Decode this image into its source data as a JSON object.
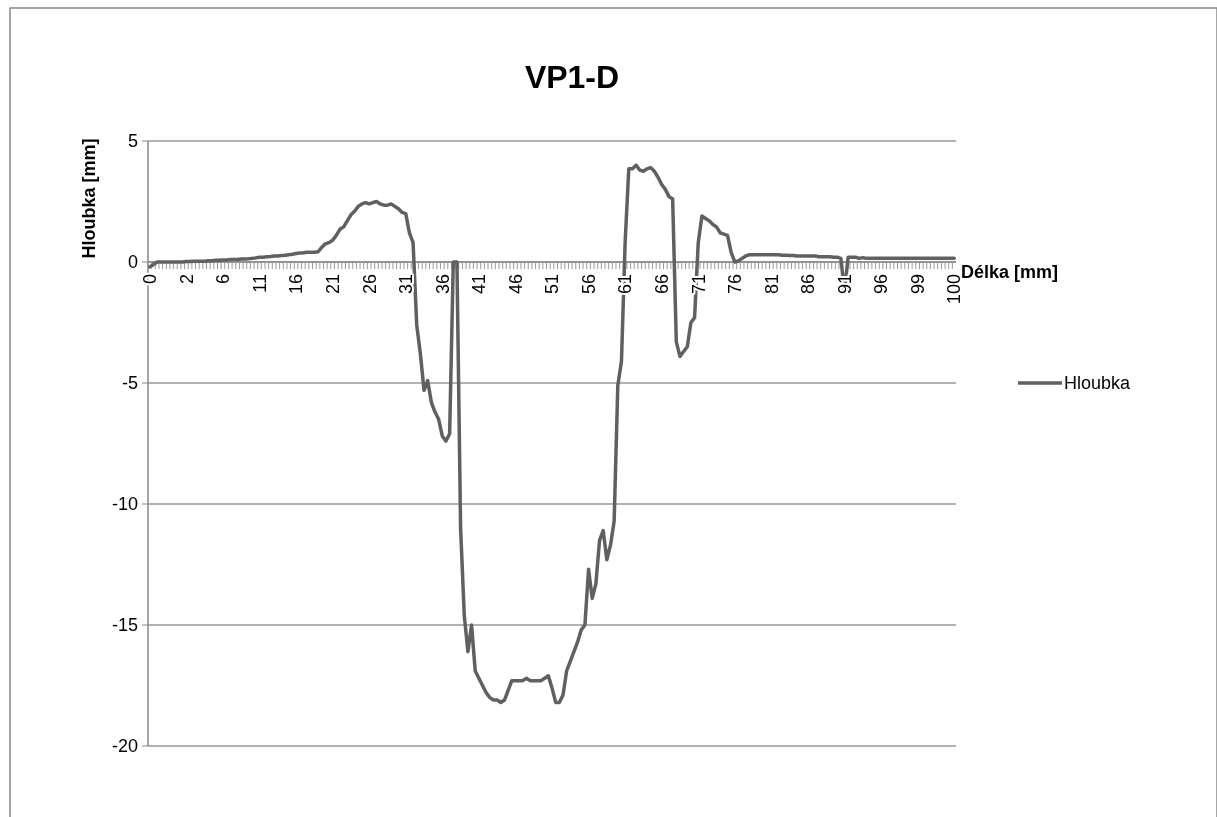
{
  "chart_data": {
    "type": "line",
    "title": "VP1-D",
    "xlabel": "Délka [mm]",
    "ylabel": "Hloubka [mm]",
    "categories": [
      "0",
      null,
      null,
      null,
      null,
      null,
      null,
      null,
      null,
      null,
      "2",
      null,
      null,
      null,
      null,
      null,
      null,
      null,
      null,
      null,
      "6",
      null,
      null,
      null,
      null,
      null,
      null,
      null,
      null,
      null,
      "11",
      null,
      null,
      null,
      null,
      null,
      null,
      null,
      null,
      null,
      "16",
      null,
      null,
      null,
      null,
      null,
      null,
      null,
      null,
      null,
      "21",
      null,
      null,
      null,
      null,
      null,
      null,
      null,
      null,
      null,
      "26",
      null,
      null,
      null,
      null,
      null,
      null,
      null,
      null,
      null,
      "31",
      null,
      null,
      null,
      null,
      null,
      null,
      null,
      null,
      null,
      "36",
      null,
      null,
      null,
      null,
      null,
      null,
      null,
      null,
      null,
      "41",
      null,
      null,
      null,
      null,
      null,
      null,
      null,
      null,
      null,
      "46",
      null,
      null,
      null,
      null,
      null,
      null,
      null,
      null,
      null,
      "51",
      null,
      null,
      null,
      null,
      null,
      null,
      null,
      null,
      null,
      "56",
      null,
      null,
      null,
      null,
      null,
      null,
      null,
      null,
      null,
      "61",
      null,
      null,
      null,
      null,
      null,
      null,
      null,
      null,
      null,
      "66",
      null,
      null,
      null,
      null,
      null,
      null,
      null,
      null,
      null,
      "71",
      null,
      null,
      null,
      null,
      null,
      null,
      null,
      null,
      null,
      "76",
      null,
      null,
      null,
      null,
      null,
      null,
      null,
      null,
      null,
      "81",
      null,
      null,
      null,
      null,
      null,
      null,
      null,
      null,
      null,
      "86",
      null,
      null,
      null,
      null,
      null,
      null,
      null,
      null,
      null,
      "91",
      null,
      null,
      null,
      null,
      null,
      null,
      null,
      null,
      null,
      "96",
      null,
      null,
      null,
      null,
      null,
      null,
      null,
      null,
      null,
      "99",
      null,
      null,
      null,
      null,
      null,
      null,
      null,
      null,
      null,
      "100"
    ],
    "series": [
      {
        "name": "Hloubka",
        "color": "#606060",
        "values": [
          -0.2,
          -0.1,
          0,
          0,
          0,
          0,
          0,
          0,
          0,
          0,
          0.02,
          0.02,
          0.03,
          0.03,
          0.03,
          0.03,
          0.05,
          0.05,
          0.07,
          0.07,
          0.08,
          0.08,
          0.1,
          0.1,
          0.1,
          0.12,
          0.12,
          0.13,
          0.15,
          0.17,
          0.2,
          0.2,
          0.22,
          0.23,
          0.25,
          0.25,
          0.27,
          0.28,
          0.3,
          0.32,
          0.35,
          0.37,
          0.38,
          0.4,
          0.4,
          0.4,
          0.42,
          0.6,
          0.75,
          0.8,
          0.9,
          1.1,
          1.35,
          1.45,
          1.7,
          1.95,
          2.1,
          2.3,
          2.4,
          2.45,
          2.4,
          2.45,
          2.5,
          2.4,
          2.35,
          2.35,
          2.4,
          2.3,
          2.2,
          2.05,
          2.0,
          1.2,
          0.8,
          -2.6,
          -3.8,
          -5.3,
          -4.9,
          -5.8,
          -6.2,
          -6.5,
          -7.2,
          -7.4,
          -7.1,
          0,
          0,
          -11,
          -14.6,
          -16.1,
          -15,
          -16.9,
          -17.2,
          -17.5,
          -17.8,
          -18,
          -18.1,
          -18.1,
          -18.2,
          -18.1,
          -17.7,
          -17.3,
          -17.3,
          -17.3,
          -17.3,
          -17.2,
          -17.3,
          -17.3,
          -17.3,
          -17.3,
          -17.2,
          -17.1,
          -17.6,
          -18.2,
          -18.2,
          -17.9,
          -16.9,
          -16.5,
          -16.1,
          -15.7,
          -15.2,
          -15,
          -12.7,
          -13.9,
          -13.3,
          -11.5,
          -11.1,
          -12.3,
          -11.7,
          -10.7,
          -5.1,
          -4.1,
          0.8,
          3.85,
          3.85,
          4.0,
          3.8,
          3.75,
          3.85,
          3.9,
          3.75,
          3.5,
          3.2,
          3.0,
          2.7,
          2.6,
          -3.3,
          -3.9,
          -3.7,
          -3.5,
          -2.5,
          -2.3,
          0.8,
          1.9,
          1.8,
          1.7,
          1.55,
          1.45,
          1.2,
          1.15,
          1.1,
          0.4,
          0,
          0.05,
          0.15,
          0.25,
          0.3,
          0.3,
          0.3,
          0.3,
          0.3,
          0.3,
          0.3,
          0.3,
          0.3,
          0.28,
          0.28,
          0.27,
          0.27,
          0.25,
          0.25,
          0.25,
          0.25,
          0.25,
          0.25,
          0.22,
          0.22,
          0.22,
          0.22,
          0.2,
          0.2,
          0.15,
          -1.2,
          0.2,
          0.2,
          0.2,
          0.15,
          0.18,
          0.15,
          0.15,
          0.15,
          0.15,
          0.15,
          0.15,
          0.15,
          0.15,
          0.15,
          0.15,
          0.15,
          0.15,
          0.15,
          0.15,
          0.15,
          0.15,
          0.15,
          0.15,
          0.15,
          0.15,
          0.15,
          0.15,
          0.15,
          0.15,
          0.15
        ]
      }
    ],
    "ylim": [
      -20,
      5
    ],
    "yticks": [
      -20,
      -15,
      -10,
      -5,
      0,
      5
    ],
    "grid": "y",
    "legend": "right",
    "marker": "none",
    "line_style": "solid"
  }
}
